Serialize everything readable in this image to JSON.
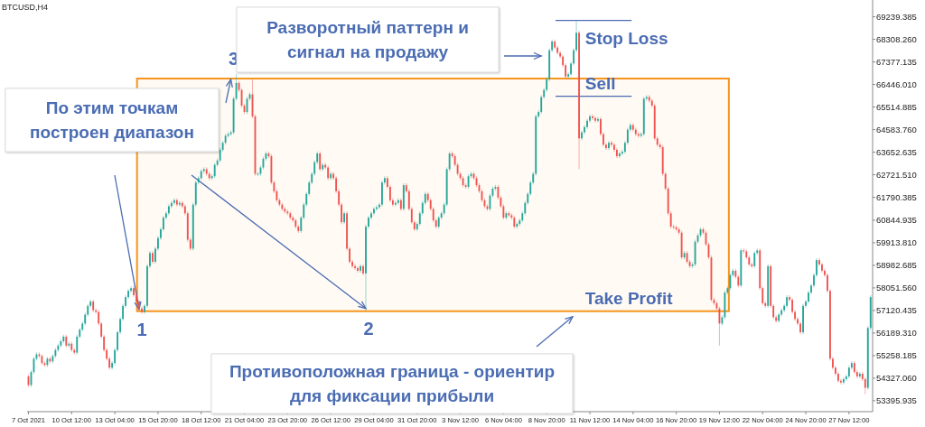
{
  "chart_data": {
    "type": "candlestick",
    "title": "BTCUSD,H4",
    "x": [
      "2021-10-07T20:00",
      "2021-10-08T00:00",
      "2021-10-08T04:00",
      "2021-10-08T08:00",
      "2021-10-08T12:00",
      "2021-10-08T16:00",
      "2021-10-08T20:00",
      "2021-10-09T00:00",
      "2021-10-09T04:00",
      "2021-10-09T08:00",
      "2021-10-09T12:00",
      "2021-10-09T16:00",
      "2021-10-09T20:00",
      "2021-10-10T00:00",
      "2021-10-10T04:00",
      "2021-10-10T08:00",
      "2021-10-10T12:00",
      "2021-10-10T16:00",
      "2021-10-10T20:00",
      "2021-10-11T00:00",
      "2021-10-11T04:00",
      "2021-10-11T08:00",
      "2021-10-11T12:00",
      "2021-10-11T16:00",
      "2021-10-11T20:00",
      "2021-10-12T00:00",
      "2021-10-12T04:00",
      "2021-10-12T08:00",
      "2021-10-12T12:00",
      "2021-10-12T16:00",
      "2021-10-12T20:00",
      "2021-10-13T00:00",
      "2021-10-13T04:00",
      "2021-10-13T08:00",
      "2021-10-13T12:00",
      "2021-10-13T16:00",
      "2021-10-13T20:00",
      "2021-10-14T00:00",
      "2021-10-14T04:00",
      "2021-10-14T08:00",
      "2021-10-14T12:00",
      "2021-10-14T16:00",
      "2021-10-14T20:00",
      "2021-10-15T00:00",
      "2021-10-15T04:00",
      "2021-10-15T08:00",
      "2021-10-15T12:00",
      "2021-10-15T16:00",
      "2021-10-15T20:00",
      "2021-10-16T00:00",
      "2021-10-16T04:00",
      "2021-10-16T08:00",
      "2021-10-16T12:00",
      "2021-10-16T16:00",
      "2021-10-16T20:00",
      "2021-10-17T00:00",
      "2021-10-17T04:00",
      "2021-10-17T08:00",
      "2021-10-17T12:00",
      "2021-10-17T16:00",
      "2021-10-17T20:00",
      "2021-10-18T00:00",
      "2021-10-18T04:00",
      "2021-10-18T08:00",
      "2021-10-18T12:00",
      "2021-10-18T16:00",
      "2021-10-18T20:00",
      "2021-10-19T00:00",
      "2021-10-19T04:00",
      "2021-10-19T08:00",
      "2021-10-19T12:00",
      "2021-10-19T16:00",
      "2021-10-19T20:00",
      "2021-10-20T00:00",
      "2021-10-20T04:00",
      "2021-10-20T08:00",
      "2021-10-20T12:00",
      "2021-10-20T16:00",
      "2021-10-20T20:00",
      "2021-10-21T00:00",
      "2021-10-21T04:00",
      "2021-10-21T08:00",
      "2021-10-21T12:00",
      "2021-10-21T16:00",
      "2021-10-21T20:00",
      "2021-10-22T00:00",
      "2021-10-22T04:00",
      "2021-10-22T08:00",
      "2021-10-22T12:00",
      "2021-10-22T16:00",
      "2021-10-22T20:00",
      "2021-10-23T00:00",
      "2021-10-23T04:00",
      "2021-10-23T08:00",
      "2021-10-23T12:00",
      "2021-10-23T16:00",
      "2021-10-23T20:00",
      "2021-10-24T00:00",
      "2021-10-24T04:00",
      "2021-10-24T08:00",
      "2021-10-24T12:00",
      "2021-10-24T16:00",
      "2021-10-24T20:00",
      "2021-10-25T00:00",
      "2021-10-25T04:00",
      "2021-10-25T08:00",
      "2021-10-25T12:00",
      "2021-10-25T16:00",
      "2021-10-25T20:00",
      "2021-10-26T00:00",
      "2021-10-26T04:00",
      "2021-10-26T08:00",
      "2021-10-26T12:00",
      "2021-10-26T16:00",
      "2021-10-26T20:00",
      "2021-10-27T00:00",
      "2021-10-27T04:00",
      "2021-10-27T08:00",
      "2021-10-27T12:00",
      "2021-10-27T16:00",
      "2021-10-27T20:00",
      "2021-10-28T00:00",
      "2021-10-28T04:00",
      "2021-10-28T08:00",
      "2021-10-28T12:00",
      "2021-10-28T16:00",
      "2021-10-28T20:00",
      "2021-10-29T00:00",
      "2021-10-29T04:00",
      "2021-10-29T08:00",
      "2021-10-29T12:00",
      "2021-10-29T16:00",
      "2021-10-29T20:00",
      "2021-10-30T00:00",
      "2021-10-30T04:00",
      "2021-10-30T08:00",
      "2021-10-30T12:00",
      "2021-10-30T16:00",
      "2021-10-30T20:00",
      "2021-10-31T00:00",
      "2021-10-31T04:00",
      "2021-10-31T08:00",
      "2021-10-31T12:00",
      "2021-10-31T16:00",
      "2021-10-31T20:00",
      "2021-11-01T00:00",
      "2021-11-01T04:00",
      "2021-11-01T08:00",
      "2021-11-01T12:00",
      "2021-11-01T16:00",
      "2021-11-01T20:00",
      "2021-11-02T00:00",
      "2021-11-02T04:00",
      "2021-11-02T08:00",
      "2021-11-02T12:00",
      "2021-11-02T16:00",
      "2021-11-02T20:00",
      "2021-11-03T00:00",
      "2021-11-03T04:00",
      "2021-11-03T08:00",
      "2021-11-03T12:00",
      "2021-11-03T16:00",
      "2021-11-03T20:00",
      "2021-11-04T00:00",
      "2021-11-04T04:00",
      "2021-11-04T08:00",
      "2021-11-04T12:00",
      "2021-11-04T16:00",
      "2021-11-04T20:00",
      "2021-11-05T00:00",
      "2021-11-05T04:00",
      "2021-11-05T08:00",
      "2021-11-05T12:00",
      "2021-11-05T16:00",
      "2021-11-05T20:00",
      "2021-11-06T00:00",
      "2021-11-06T04:00",
      "2021-11-06T08:00",
      "2021-11-06T12:00",
      "2021-11-06T16:00",
      "2021-11-06T20:00",
      "2021-11-07T00:00",
      "2021-11-07T04:00",
      "2021-11-07T08:00",
      "2021-11-07T12:00",
      "2021-11-07T16:00",
      "2021-11-07T20:00",
      "2021-11-08T00:00",
      "2021-11-08T04:00",
      "2021-11-08T08:00",
      "2021-11-08T12:00",
      "2021-11-08T16:00",
      "2021-11-08T20:00",
      "2021-11-09T00:00",
      "2021-11-09T04:00",
      "2021-11-09T08:00",
      "2021-11-09T12:00",
      "2021-11-09T16:00",
      "2021-11-09T20:00",
      "2021-11-10T00:00",
      "2021-11-10T04:00",
      "2021-11-10T08:00",
      "2021-11-10T12:00",
      "2021-11-10T16:00",
      "2021-11-10T20:00",
      "2021-11-11T00:00",
      "2021-11-11T04:00",
      "2021-11-11T08:00",
      "2021-11-11T12:00",
      "2021-11-11T16:00",
      "2021-11-11T20:00",
      "2021-11-12T00:00",
      "2021-11-12T04:00",
      "2021-11-12T08:00",
      "2021-11-12T12:00",
      "2021-11-12T16:00",
      "2021-11-12T20:00",
      "2021-11-13T00:00",
      "2021-11-13T04:00",
      "2021-11-13T08:00",
      "2021-11-13T12:00",
      "2021-11-13T16:00",
      "2021-11-13T20:00",
      "2021-11-14T00:00",
      "2021-11-14T04:00",
      "2021-11-14T08:00",
      "2021-11-14T12:00",
      "2021-11-14T16:00",
      "2021-11-14T20:00",
      "2021-11-15T00:00",
      "2021-11-15T04:00",
      "2021-11-15T08:00",
      "2021-11-15T12:00",
      "2021-11-15T16:00",
      "2021-11-15T20:00",
      "2021-11-16T00:00",
      "2021-11-16T04:00",
      "2021-11-16T08:00",
      "2021-11-16T12:00",
      "2021-11-16T16:00",
      "2021-11-16T20:00",
      "2021-11-17T00:00",
      "2021-11-17T04:00",
      "2021-11-17T08:00",
      "2021-11-17T12:00",
      "2021-11-17T16:00",
      "2021-11-17T20:00",
      "2021-11-18T00:00",
      "2021-11-18T04:00",
      "2021-11-18T08:00",
      "2021-11-18T12:00",
      "2021-11-18T16:00",
      "2021-11-18T20:00",
      "2021-11-19T00:00",
      "2021-11-19T04:00",
      "2021-11-19T08:00",
      "2021-11-19T12:00",
      "2021-11-19T16:00",
      "2021-11-19T20:00",
      "2021-11-20T00:00",
      "2021-11-20T04:00",
      "2021-11-20T08:00",
      "2021-11-20T12:00",
      "2021-11-20T16:00",
      "2021-11-20T20:00",
      "2021-11-21T00:00",
      "2021-11-21T04:00",
      "2021-11-21T08:00",
      "2021-11-21T12:00",
      "2021-11-21T16:00",
      "2021-11-21T20:00",
      "2021-11-22T00:00",
      "2021-11-22T04:00",
      "2021-11-22T08:00",
      "2021-11-22T12:00",
      "2021-11-22T16:00",
      "2021-11-22T20:00",
      "2021-11-23T00:00",
      "2021-11-23T04:00",
      "2021-11-23T08:00",
      "2021-11-23T12:00",
      "2021-11-23T16:00",
      "2021-11-23T20:00",
      "2021-11-24T00:00",
      "2021-11-24T04:00",
      "2021-11-24T08:00",
      "2021-11-24T12:00",
      "2021-11-24T16:00",
      "2021-11-24T20:00",
      "2021-11-25T00:00",
      "2021-11-25T04:00",
      "2021-11-25T08:00",
      "2021-11-25T12:00",
      "2021-11-25T16:00",
      "2021-11-25T20:00",
      "2021-11-26T00:00",
      "2021-11-26T04:00",
      "2021-11-26T08:00",
      "2021-11-26T12:00",
      "2021-11-26T16:00",
      "2021-11-26T20:00",
      "2021-11-27T00:00",
      "2021-11-27T04:00",
      "2021-11-27T08:00",
      "2021-11-27T12:00",
      "2021-11-27T16:00",
      "2021-11-27T20:00",
      "2021-11-28T00:00",
      "2021-11-28T04:00",
      "2021-11-28T08:00",
      "2021-11-28T12:00",
      "2021-11-28T16:00",
      "2021-11-28T20:00"
    ],
    "ohlc": [
      [
        54400,
        54480,
        53960,
        54040
      ],
      [
        54040,
        54660,
        53960,
        54580
      ],
      [
        54580,
        55210,
        54500,
        55130
      ],
      [
        55130,
        55390,
        55050,
        55310
      ],
      [
        55310,
        55390,
        55160,
        55240
      ],
      [
        55240,
        55320,
        54870,
        54950
      ],
      [
        54950,
        55030,
        54790,
        54870
      ],
      [
        54870,
        55210,
        54790,
        55130
      ],
      [
        55130,
        55210,
        54940,
        55020
      ],
      [
        55020,
        55320,
        54940,
        55240
      ],
      [
        55240,
        55570,
        55160,
        55490
      ],
      [
        55490,
        55750,
        55410,
        55670
      ],
      [
        55670,
        55930,
        55590,
        55850
      ],
      [
        55850,
        56120,
        55770,
        56040
      ],
      [
        56040,
        56120,
        55590,
        55670
      ],
      [
        55670,
        55830,
        55590,
        55750
      ],
      [
        55750,
        55830,
        55410,
        55490
      ],
      [
        55490,
        55570,
        55300,
        55380
      ],
      [
        55380,
        56120,
        55300,
        56040
      ],
      [
        56040,
        56410,
        55960,
        56330
      ],
      [
        56330,
        56660,
        56250,
        56580
      ],
      [
        56580,
        57030,
        56500,
        56950
      ],
      [
        56950,
        57390,
        56870,
        57310
      ],
      [
        57310,
        57570,
        57230,
        57490
      ],
      [
        57490,
        57570,
        57050,
        57130
      ],
      [
        57130,
        57210,
        56980,
        57060
      ],
      [
        57060,
        57140,
        56500,
        56580
      ],
      [
        56580,
        56660,
        55960,
        56040
      ],
      [
        56040,
        56120,
        55410,
        55490
      ],
      [
        55490,
        55570,
        55050,
        55130
      ],
      [
        55130,
        55210,
        54680,
        54760
      ],
      [
        54760,
        55030,
        54680,
        54950
      ],
      [
        54950,
        55570,
        54870,
        55490
      ],
      [
        55490,
        56300,
        55410,
        56220
      ],
      [
        56220,
        56850,
        56140,
        56770
      ],
      [
        56770,
        57390,
        56690,
        57310
      ],
      [
        57310,
        57750,
        57230,
        57670
      ],
      [
        57670,
        58010,
        57590,
        57930
      ],
      [
        57930,
        58120,
        57850,
        58040
      ],
      [
        58040,
        58120,
        57670,
        57750
      ],
      [
        57750,
        57830,
        57410,
        57490
      ],
      [
        57490,
        57570,
        57120,
        57200
      ],
      [
        57200,
        57280,
        56980,
        57060
      ],
      [
        57060,
        57390,
        56980,
        57310
      ],
      [
        57310,
        59030,
        57230,
        58950
      ],
      [
        58950,
        59570,
        58870,
        59490
      ],
      [
        59490,
        59570,
        59050,
        59130
      ],
      [
        59130,
        59750,
        59050,
        59670
      ],
      [
        59670,
        60190,
        59590,
        60110
      ],
      [
        60110,
        60550,
        60030,
        60470
      ],
      [
        60470,
        61030,
        60390,
        60950
      ],
      [
        60950,
        61210,
        60870,
        61130
      ],
      [
        61130,
        61500,
        61050,
        61420
      ],
      [
        61420,
        61640,
        61340,
        61560
      ],
      [
        61560,
        61750,
        61480,
        61670
      ],
      [
        61670,
        61750,
        61410,
        61490
      ],
      [
        61490,
        61640,
        61410,
        61560
      ],
      [
        61560,
        61640,
        61340,
        61420
      ],
      [
        61420,
        61500,
        61050,
        61130
      ],
      [
        61130,
        61210,
        59960,
        60040
      ],
      [
        60040,
        60120,
        59590,
        59670
      ],
      [
        59670,
        61570,
        59590,
        61490
      ],
      [
        61490,
        62480,
        61410,
        62400
      ],
      [
        62400,
        62660,
        62320,
        62580
      ],
      [
        62580,
        62950,
        62500,
        62870
      ],
      [
        62870,
        63030,
        62790,
        62950
      ],
      [
        62950,
        63030,
        62680,
        62760
      ],
      [
        62760,
        62840,
        62500,
        62580
      ],
      [
        62580,
        62740,
        62500,
        62660
      ],
      [
        62660,
        63210,
        62580,
        63130
      ],
      [
        63130,
        63390,
        63050,
        63310
      ],
      [
        63310,
        63830,
        63230,
        63750
      ],
      [
        63750,
        64120,
        63670,
        64040
      ],
      [
        64040,
        64410,
        63960,
        64330
      ],
      [
        64330,
        64480,
        64250,
        64400
      ],
      [
        64400,
        64550,
        64320,
        64470
      ],
      [
        64470,
        65940,
        64390,
        65860
      ],
      [
        65860,
        66880,
        65780,
        66510
      ],
      [
        66510,
        66590,
        66140,
        66220
      ],
      [
        66220,
        66300,
        65490,
        65570
      ],
      [
        65570,
        65650,
        65230,
        65310
      ],
      [
        65310,
        65940,
        65230,
        65860
      ],
      [
        65860,
        66120,
        65780,
        66040
      ],
      [
        66040,
        66650,
        65050,
        65130
      ],
      [
        65130,
        65210,
        62680,
        62760
      ],
      [
        62760,
        62840,
        62680,
        62760
      ],
      [
        62760,
        63100,
        62680,
        63020
      ],
      [
        63020,
        63460,
        62940,
        63380
      ],
      [
        63380,
        63680,
        63300,
        63600
      ],
      [
        63600,
        63680,
        63410,
        63490
      ],
      [
        63490,
        63570,
        62320,
        62400
      ],
      [
        62400,
        62480,
        61960,
        62040
      ],
      [
        62040,
        62120,
        61590,
        61670
      ],
      [
        61670,
        61750,
        61410,
        61490
      ],
      [
        61490,
        61570,
        61230,
        61310
      ],
      [
        61310,
        61390,
        61120,
        61200
      ],
      [
        61200,
        61280,
        61050,
        61130
      ],
      [
        61130,
        61210,
        60870,
        60950
      ],
      [
        60950,
        61030,
        60760,
        60840
      ],
      [
        60840,
        60920,
        60500,
        60580
      ],
      [
        60580,
        60660,
        60320,
        60400
      ],
      [
        60400,
        61030,
        60320,
        60950
      ],
      [
        60950,
        61570,
        60870,
        61490
      ],
      [
        61490,
        62010,
        61410,
        61930
      ],
      [
        61930,
        62480,
        61850,
        62400
      ],
      [
        62400,
        62840,
        62320,
        62760
      ],
      [
        62760,
        63320,
        62680,
        63240
      ],
      [
        63240,
        63680,
        63160,
        63600
      ],
      [
        63600,
        63680,
        62870,
        62950
      ],
      [
        62950,
        63210,
        62870,
        63130
      ],
      [
        63130,
        63210,
        62940,
        63020
      ],
      [
        63020,
        63100,
        62500,
        62580
      ],
      [
        62580,
        62840,
        62500,
        62760
      ],
      [
        62760,
        62840,
        62500,
        62580
      ],
      [
        62580,
        62660,
        61960,
        62040
      ],
      [
        62040,
        62120,
        61410,
        61490
      ],
      [
        61490,
        61570,
        60680,
        60760
      ],
      [
        60760,
        61210,
        60680,
        61130
      ],
      [
        61130,
        61210,
        59590,
        59670
      ],
      [
        59670,
        59750,
        59050,
        59130
      ],
      [
        59130,
        59210,
        58870,
        58950
      ],
      [
        58950,
        59030,
        58790,
        58870
      ],
      [
        58870,
        58950,
        58680,
        58760
      ],
      [
        58760,
        59030,
        58680,
        58950
      ],
      [
        58950,
        59030,
        58570,
        58650
      ],
      [
        58650,
        60660,
        57130,
        60580
      ],
      [
        60580,
        61030,
        60500,
        60950
      ],
      [
        60950,
        61210,
        60870,
        61130
      ],
      [
        61130,
        61390,
        61050,
        61310
      ],
      [
        61310,
        61460,
        61230,
        61380
      ],
      [
        61380,
        61570,
        61300,
        61490
      ],
      [
        61490,
        62480,
        61410,
        62400
      ],
      [
        62400,
        62660,
        62320,
        62580
      ],
      [
        62580,
        62660,
        62140,
        62220
      ],
      [
        62220,
        62300,
        61590,
        61670
      ],
      [
        61670,
        61750,
        61410,
        61490
      ],
      [
        61490,
        61640,
        61410,
        61560
      ],
      [
        61560,
        61750,
        61480,
        61670
      ],
      [
        61670,
        61750,
        61230,
        61310
      ],
      [
        61310,
        62370,
        61230,
        62290
      ],
      [
        62290,
        62370,
        61960,
        62040
      ],
      [
        62040,
        62120,
        61230,
        61310
      ],
      [
        61310,
        61390,
        60680,
        60760
      ],
      [
        60760,
        60840,
        60390,
        60470
      ],
      [
        60470,
        60770,
        60390,
        60690
      ],
      [
        60690,
        61210,
        60610,
        61130
      ],
      [
        61130,
        61640,
        61050,
        61560
      ],
      [
        61560,
        62010,
        61480,
        61930
      ],
      [
        61930,
        62010,
        61590,
        61670
      ],
      [
        61670,
        61750,
        61230,
        61310
      ],
      [
        61310,
        61390,
        60760,
        60840
      ],
      [
        60840,
        60920,
        60500,
        60580
      ],
      [
        60580,
        61030,
        60500,
        60950
      ],
      [
        60950,
        61210,
        60870,
        61130
      ],
      [
        61130,
        61570,
        61050,
        61490
      ],
      [
        61490,
        63030,
        61410,
        62950
      ],
      [
        62950,
        63680,
        62870,
        63600
      ],
      [
        63600,
        63680,
        63410,
        63490
      ],
      [
        63490,
        63570,
        63050,
        63130
      ],
      [
        63130,
        63210,
        62680,
        62760
      ],
      [
        62760,
        62840,
        62500,
        62580
      ],
      [
        62580,
        62660,
        62210,
        62290
      ],
      [
        62290,
        62370,
        62140,
        62220
      ],
      [
        62220,
        62740,
        62140,
        62660
      ],
      [
        62660,
        62840,
        62580,
        62760
      ],
      [
        62760,
        62840,
        62500,
        62580
      ],
      [
        62580,
        62660,
        62210,
        62290
      ],
      [
        62290,
        62370,
        61960,
        62040
      ],
      [
        62040,
        62120,
        61590,
        61670
      ],
      [
        61670,
        61750,
        61340,
        61420
      ],
      [
        61420,
        61500,
        61230,
        61310
      ],
      [
        61310,
        61940,
        61230,
        61860
      ],
      [
        61860,
        62230,
        61780,
        62150
      ],
      [
        62150,
        62300,
        62070,
        62220
      ],
      [
        62220,
        62300,
        61700,
        61780
      ],
      [
        61780,
        61860,
        61340,
        61420
      ],
      [
        61420,
        61500,
        60870,
        60950
      ],
      [
        60950,
        61210,
        60870,
        61130
      ],
      [
        61130,
        61210,
        60970,
        61050
      ],
      [
        61050,
        61130,
        60870,
        60950
      ],
      [
        60950,
        61030,
        60500,
        60580
      ],
      [
        60580,
        60770,
        60500,
        60690
      ],
      [
        60690,
        60920,
        60610,
        60840
      ],
      [
        60840,
        61210,
        60760,
        61130
      ],
      [
        61130,
        61640,
        61050,
        61560
      ],
      [
        61560,
        62010,
        61480,
        61930
      ],
      [
        61930,
        62480,
        61850,
        62400
      ],
      [
        62400,
        62840,
        62320,
        62760
      ],
      [
        62760,
        65210,
        62680,
        65130
      ],
      [
        65130,
        65390,
        65050,
        65310
      ],
      [
        65310,
        66010,
        65230,
        65930
      ],
      [
        65930,
        66300,
        65850,
        66220
      ],
      [
        66220,
        66740,
        66140,
        66660
      ],
      [
        66660,
        67940,
        66580,
        67860
      ],
      [
        67860,
        68300,
        67780,
        68220
      ],
      [
        68220,
        68300,
        67890,
        67970
      ],
      [
        67970,
        68050,
        67670,
        67750
      ],
      [
        67750,
        67830,
        67520,
        67600
      ],
      [
        67600,
        67680,
        67160,
        67240
      ],
      [
        67240,
        67320,
        66690,
        66770
      ],
      [
        66770,
        66950,
        66690,
        66870
      ],
      [
        66870,
        67390,
        66790,
        67310
      ],
      [
        67310,
        67940,
        67230,
        67860
      ],
      [
        67860,
        69060,
        67780,
        68580
      ],
      [
        68580,
        68660,
        62950,
        64220
      ],
      [
        64220,
        64550,
        64140,
        64470
      ],
      [
        64470,
        64770,
        64390,
        64690
      ],
      [
        64690,
        65030,
        64610,
        64950
      ],
      [
        64950,
        65210,
        64870,
        65130
      ],
      [
        65130,
        65210,
        64980,
        65060
      ],
      [
        65060,
        65140,
        64870,
        64950
      ],
      [
        64950,
        65100,
        64870,
        65020
      ],
      [
        65020,
        65100,
        64320,
        64400
      ],
      [
        64400,
        64480,
        63880,
        63960
      ],
      [
        63960,
        64040,
        63740,
        63820
      ],
      [
        63820,
        64120,
        63740,
        64040
      ],
      [
        64040,
        64120,
        63880,
        63960
      ],
      [
        63960,
        64040,
        63670,
        63750
      ],
      [
        63750,
        63830,
        63410,
        63490
      ],
      [
        63490,
        63680,
        63410,
        63600
      ],
      [
        63600,
        63750,
        63520,
        63670
      ],
      [
        63670,
        64120,
        63590,
        64040
      ],
      [
        64040,
        64660,
        63960,
        64580
      ],
      [
        64580,
        64850,
        64500,
        64770
      ],
      [
        64770,
        64850,
        64500,
        64580
      ],
      [
        64580,
        64660,
        64320,
        64400
      ],
      [
        64400,
        64480,
        64250,
        64330
      ],
      [
        64330,
        64480,
        64250,
        64400
      ],
      [
        64400,
        65940,
        64320,
        65860
      ],
      [
        65860,
        66010,
        65780,
        65930
      ],
      [
        65930,
        66010,
        65700,
        65780
      ],
      [
        65780,
        65860,
        65490,
        65570
      ],
      [
        65570,
        65650,
        64140,
        64220
      ],
      [
        64220,
        64300,
        63880,
        63960
      ],
      [
        63960,
        64040,
        63780,
        63860
      ],
      [
        63860,
        63940,
        62680,
        62760
      ],
      [
        62760,
        62840,
        62070,
        62150
      ],
      [
        62150,
        62230,
        61050,
        61130
      ],
      [
        61130,
        61210,
        60500,
        60580
      ],
      [
        60580,
        60660,
        60470,
        60550
      ],
      [
        60550,
        60630,
        60390,
        60470
      ],
      [
        60470,
        60550,
        60250,
        60330
      ],
      [
        60330,
        60410,
        59230,
        59310
      ],
      [
        59310,
        59570,
        59230,
        59490
      ],
      [
        59490,
        59570,
        59050,
        59130
      ],
      [
        59130,
        59210,
        58870,
        58950
      ],
      [
        58950,
        59100,
        58870,
        59020
      ],
      [
        59020,
        60040,
        58940,
        59960
      ],
      [
        59960,
        60300,
        59880,
        60220
      ],
      [
        60220,
        60550,
        60140,
        60470
      ],
      [
        60470,
        60550,
        60250,
        60330
      ],
      [
        60330,
        60410,
        59770,
        59850
      ],
      [
        59850,
        59930,
        59230,
        59310
      ],
      [
        59310,
        59390,
        57480,
        57560
      ],
      [
        57560,
        57640,
        57340,
        57420
      ],
      [
        57420,
        57500,
        57120,
        57200
      ],
      [
        57200,
        57280,
        55670,
        56580
      ],
      [
        56580,
        56920,
        56500,
        56840
      ],
      [
        56840,
        57940,
        56760,
        57860
      ],
      [
        57860,
        58120,
        57780,
        58040
      ],
      [
        58040,
        58660,
        57960,
        58580
      ],
      [
        58580,
        58840,
        58500,
        58760
      ],
      [
        58760,
        58840,
        58430,
        58510
      ],
      [
        58510,
        58590,
        58070,
        58150
      ],
      [
        58150,
        59680,
        58070,
        59600
      ],
      [
        59600,
        59680,
        59480,
        59560
      ],
      [
        59560,
        59640,
        59230,
        59310
      ],
      [
        59310,
        59390,
        58940,
        59020
      ],
      [
        59020,
        59100,
        58870,
        58950
      ],
      [
        58950,
        59570,
        58870,
        59490
      ],
      [
        59490,
        59680,
        59410,
        59600
      ],
      [
        59600,
        59680,
        57960,
        58040
      ],
      [
        58040,
        58120,
        57340,
        57420
      ],
      [
        57420,
        57500,
        57230,
        57310
      ],
      [
        57310,
        59030,
        57230,
        58950
      ],
      [
        58950,
        59030,
        57230,
        57310
      ],
      [
        57310,
        57390,
        56760,
        56840
      ],
      [
        56840,
        56920,
        56610,
        56690
      ],
      [
        56690,
        57030,
        56610,
        56950
      ],
      [
        56950,
        57210,
        56870,
        57130
      ],
      [
        57130,
        57390,
        57050,
        57310
      ],
      [
        57310,
        57750,
        57230,
        57670
      ],
      [
        57670,
        57750,
        57480,
        57560
      ],
      [
        57560,
        57640,
        56980,
        57060
      ],
      [
        57060,
        57140,
        56690,
        56770
      ],
      [
        56770,
        56850,
        56500,
        56580
      ],
      [
        56580,
        56660,
        56140,
        56220
      ],
      [
        56220,
        57390,
        56140,
        57310
      ],
      [
        57310,
        57570,
        57230,
        57490
      ],
      [
        57490,
        57940,
        57410,
        57860
      ],
      [
        57860,
        58230,
        57780,
        58150
      ],
      [
        58150,
        58660,
        58070,
        58580
      ],
      [
        58580,
        59280,
        58500,
        59200
      ],
      [
        59200,
        59280,
        58940,
        59020
      ],
      [
        59020,
        59100,
        58680,
        58760
      ],
      [
        58760,
        58840,
        58500,
        58580
      ],
      [
        58580,
        58660,
        57850,
        57930
      ],
      [
        57930,
        58010,
        55050,
        55130
      ],
      [
        55130,
        55210,
        54680,
        54760
      ],
      [
        54760,
        54840,
        54430,
        54510
      ],
      [
        54510,
        54590,
        54140,
        54220
      ],
      [
        54220,
        54300,
        54070,
        54150
      ],
      [
        54150,
        54370,
        54070,
        54290
      ],
      [
        54290,
        54480,
        54210,
        54400
      ],
      [
        54400,
        54840,
        54320,
        54760
      ],
      [
        54760,
        55030,
        54680,
        54950
      ],
      [
        54950,
        55030,
        54500,
        54580
      ],
      [
        54580,
        54660,
        54320,
        54400
      ],
      [
        54400,
        54590,
        54320,
        54510
      ],
      [
        54510,
        54590,
        54210,
        54290
      ],
      [
        54290,
        54370,
        53670,
        53930
      ],
      [
        53930,
        56480,
        53850,
        56400
      ],
      [
        56400,
        57750,
        56320,
        57670
      ]
    ],
    "xlim": [
      "2021-10-07T18:00",
      "2021-11-28T23:00"
    ],
    "xticks": [
      {
        "value": "2021-10-07T20:00",
        "label": "7 Oct 2021"
      },
      {
        "value": "2021-10-10T12:00",
        "label": "10 Oct 12:00"
      },
      {
        "value": "2021-10-13T04:00",
        "label": "13 Oct 04:00"
      },
      {
        "value": "2021-10-15T20:00",
        "label": "15 Oct 20:00"
      },
      {
        "value": "2021-10-18T12:00",
        "label": "18 Oct 12:00"
      },
      {
        "value": "2021-10-21T04:00",
        "label": "21 Oct 04:00"
      },
      {
        "value": "2021-10-23T20:00",
        "label": "23 Oct 20:00"
      },
      {
        "value": "2021-10-26T12:00",
        "label": "26 Oct 12:00"
      },
      {
        "value": "2021-10-29T04:00",
        "label": "29 Oct 04:00"
      },
      {
        "value": "2021-10-31T20:00",
        "label": "31 Oct 20:00"
      },
      {
        "value": "2021-11-03T12:00",
        "label": "3 Nov 12:00"
      },
      {
        "value": "2021-11-06T04:00",
        "label": "6 Nov 04:00"
      },
      {
        "value": "2021-11-08T20:00",
        "label": "8 Nov 20:00"
      },
      {
        "value": "2021-11-11T12:00",
        "label": "11 Nov 12:00"
      },
      {
        "value": "2021-11-14T04:00",
        "label": "14 Nov 04:00"
      },
      {
        "value": "2021-11-16T20:00",
        "label": "16 Nov 20:00"
      },
      {
        "value": "2021-11-19T12:00",
        "label": "19 Nov 12:00"
      },
      {
        "value": "2021-11-22T04:00",
        "label": "22 Nov 04:00"
      },
      {
        "value": "2021-11-24T20:00",
        "label": "24 Nov 20:00"
      },
      {
        "value": "2021-11-27T12:00",
        "label": "27 Nov 12:00"
      }
    ],
    "ylim": [
      52945,
      69857
    ],
    "yticks": [
      {
        "value": 69239.385,
        "label": "69239.385"
      },
      {
        "value": 68308.26,
        "label": "68308.260"
      },
      {
        "value": 67377.135,
        "label": "67377.135"
      },
      {
        "value": 66446.01,
        "label": "66446.010"
      },
      {
        "value": 65514.885,
        "label": "65514.885"
      },
      {
        "value": 64583.76,
        "label": "64583.760"
      },
      {
        "value": 63652.635,
        "label": "63652.635"
      },
      {
        "value": 62721.51,
        "label": "62721.510"
      },
      {
        "value": 61790.385,
        "label": "61790.385"
      },
      {
        "value": 60844.935,
        "label": "60844.935"
      },
      {
        "value": 59913.81,
        "label": "59913.810"
      },
      {
        "value": 58982.685,
        "label": "58982.685"
      },
      {
        "value": 58051.56,
        "label": "58051.560"
      },
      {
        "value": 57120.435,
        "label": "57120.435"
      },
      {
        "value": 56189.31,
        "label": "56189.310"
      },
      {
        "value": 55258.185,
        "label": "55258.185"
      },
      {
        "value": 54327.06,
        "label": "54327.060"
      },
      {
        "value": 53395.935,
        "label": "53395.935"
      }
    ],
    "ref_lines": [
      {
        "axis": "y",
        "value": 69090,
        "label": "Stop Loss",
        "color": "#4a6cb3"
      },
      {
        "axis": "y",
        "value": 65960,
        "label": "Sell",
        "color": "#4a6cb3"
      }
    ],
    "bands": [
      {
        "axis": "y",
        "from": 57090,
        "to": 66690,
        "label": "Take Profit",
        "color": "#f7941d"
      }
    ],
    "annotations": [
      "Разворотный паттерн и сигнал на продажу",
      "По этим точкам построен диапазон",
      "Противоположная граница - ориентир для фиксации прибыли",
      {
        "text": "1",
        "x": "2021-10-14T20:00",
        "y": 57090
      },
      {
        "text": "2",
        "x": "2021-10-28T20:00",
        "y": 57130
      },
      {
        "text": "3",
        "x": "2021-10-20T12:00",
        "y": 66880
      }
    ]
  }
}
